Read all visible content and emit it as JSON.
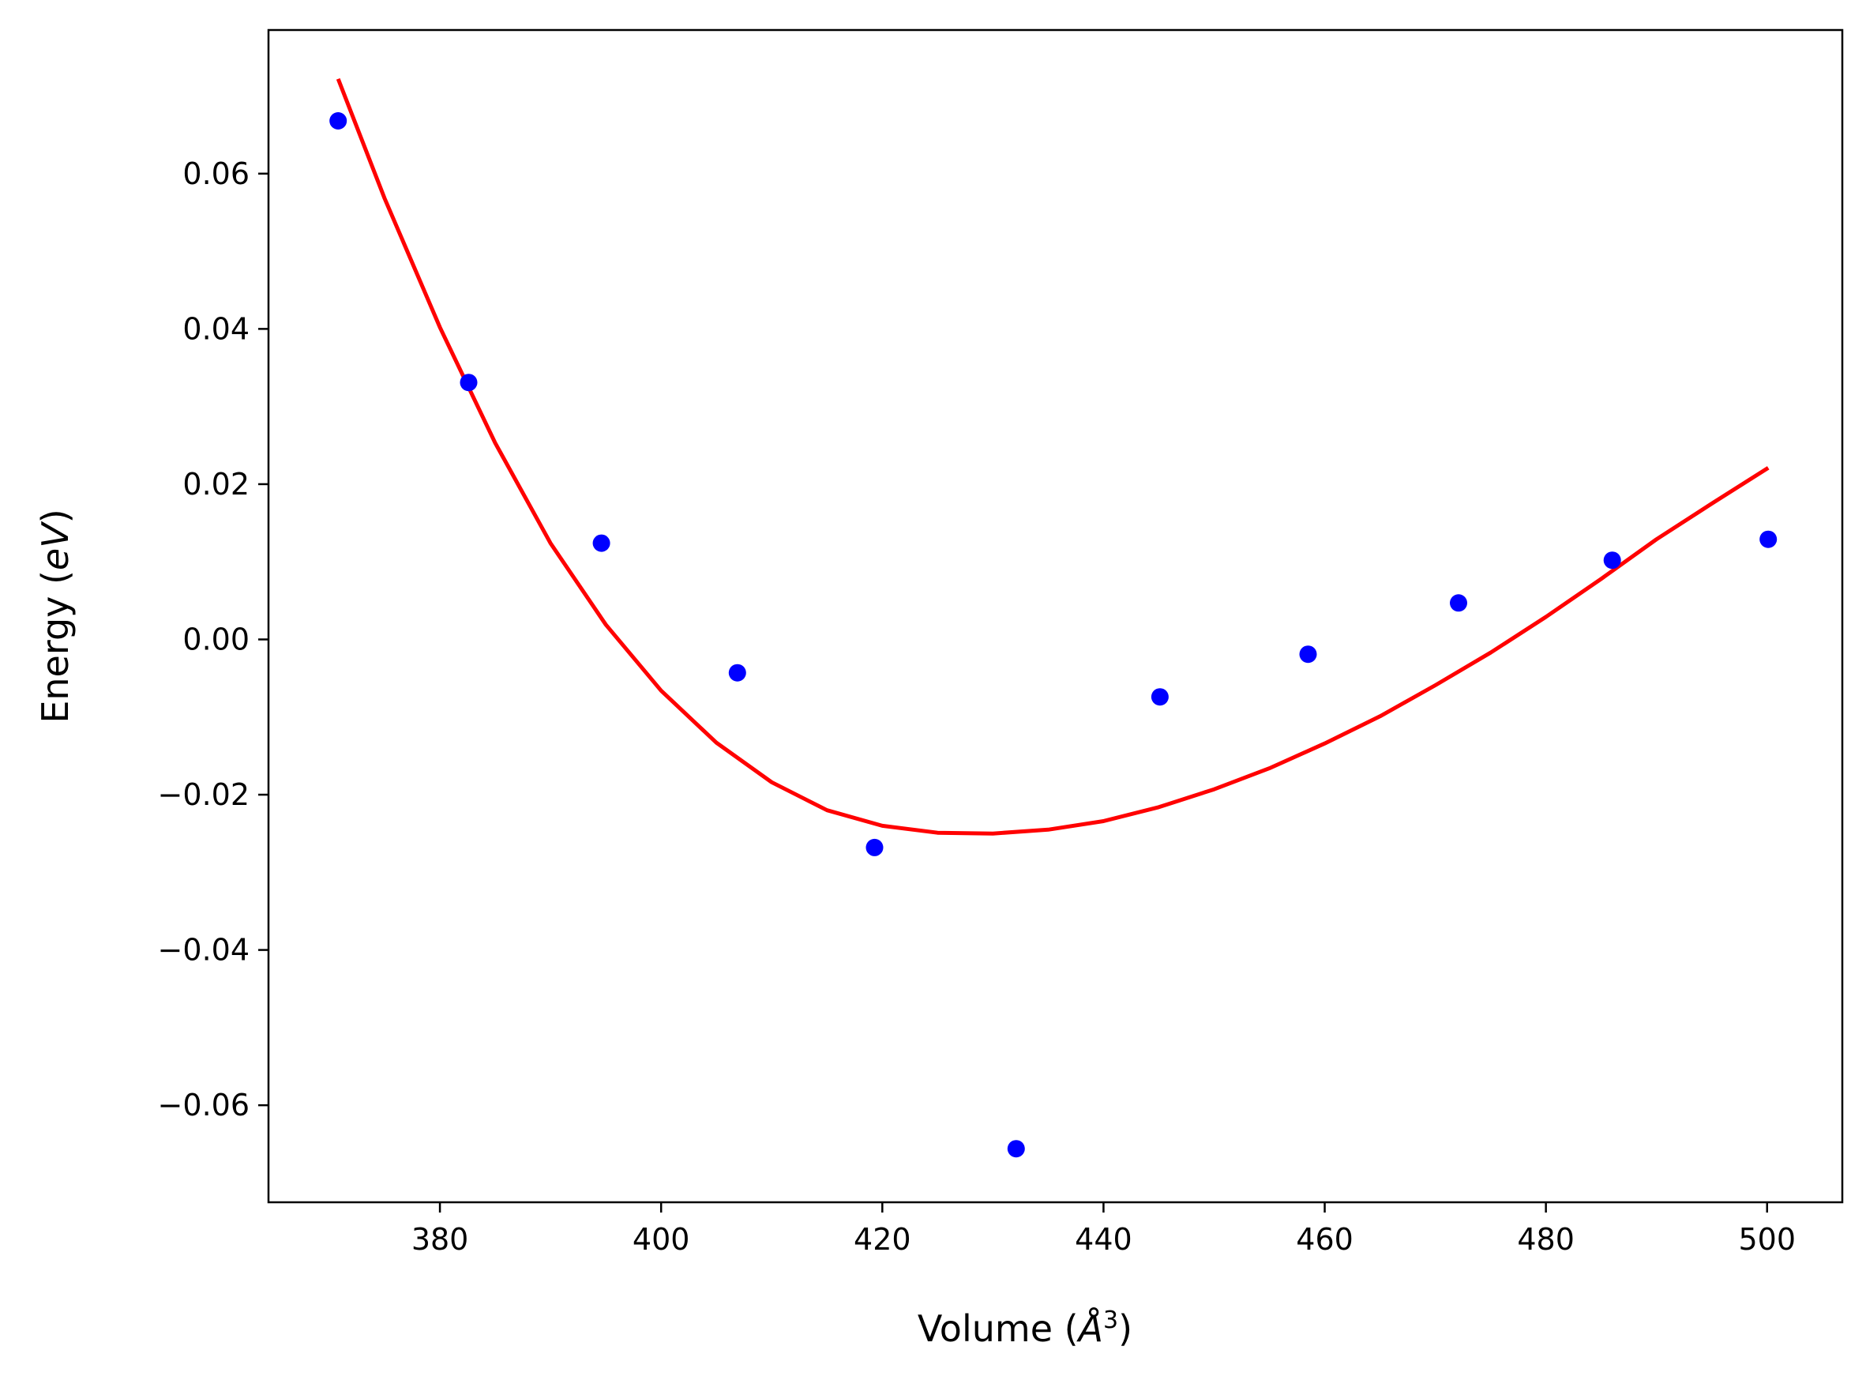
{
  "chart_data": {
    "type": "scatter",
    "xlabel": "Volume (Å³)",
    "xlabel_parts": {
      "main": "Volume (",
      "italic": "Å",
      "sup": "3",
      "close": ")"
    },
    "ylabel": "Energy (eV)",
    "ylabel_parts": {
      "main": "Energy (",
      "italic": "eV",
      "close": ")"
    },
    "xlim": [
      364.5,
      506.8
    ],
    "ylim": [
      -0.0725,
      0.0785
    ],
    "x_ticks": [
      380,
      400,
      420,
      440,
      460,
      480,
      500
    ],
    "x_tick_labels": [
      "380",
      "400",
      "420",
      "440",
      "460",
      "480",
      "500"
    ],
    "y_ticks": [
      -0.06,
      -0.04,
      -0.02,
      0.0,
      0.02,
      0.04,
      0.06
    ],
    "y_tick_labels": [
      "−0.06",
      "−0.04",
      "−0.02",
      "0.00",
      "0.02",
      "0.04",
      "0.06"
    ],
    "grid": false,
    "series": [
      {
        "kind": "scatter",
        "color": "#0000ff",
        "x": [
          370.8,
          382.6,
          394.6,
          406.9,
          419.3,
          432.1,
          445.1,
          458.5,
          472.1,
          486.0,
          500.1
        ],
        "y": [
          0.0668,
          0.0331,
          0.0124,
          -0.0043,
          -0.0268,
          -0.0656,
          -0.0074,
          -0.0019,
          0.0047,
          0.0102,
          0.0129
        ]
      },
      {
        "kind": "line",
        "color": "#ff0000",
        "x": [
          370.8,
          375,
          380,
          385,
          390,
          395,
          400,
          405,
          410,
          415,
          420,
          425,
          430,
          435,
          440,
          445,
          450,
          455,
          460,
          465,
          470,
          475,
          480,
          485,
          490,
          495,
          500.1
        ],
        "y": [
          0.0722,
          0.0568,
          0.0402,
          0.0253,
          0.0124,
          0.0019,
          -0.0066,
          -0.0133,
          -0.0184,
          -0.022,
          -0.024,
          -0.0249,
          -0.025,
          -0.0245,
          -0.0234,
          -0.0216,
          -0.0193,
          -0.0166,
          -0.0134,
          -0.0099,
          -0.0059,
          -0.0017,
          0.0029,
          0.0078,
          0.0129,
          0.0175,
          0.0221
        ]
      }
    ]
  }
}
